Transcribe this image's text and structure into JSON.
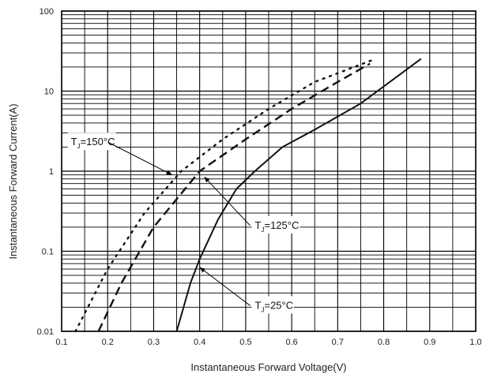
{
  "chart_data": {
    "type": "line",
    "xscale": "linear",
    "yscale": "log",
    "xlabel": "Instantaneous Forward Voltage(V)",
    "ylabel": "Instantaneous Forward Current(A)",
    "xlim": [
      0.1,
      1.0
    ],
    "ylim": [
      0.01,
      100
    ],
    "x_ticks": [
      "0.1",
      "0.2",
      "0.3",
      "0.4",
      "0.5",
      "0.6",
      "0.7",
      "0.8",
      "0.9",
      "1.0"
    ],
    "y_ticks": [
      "0.01",
      "0.1",
      "1",
      "10",
      "100"
    ],
    "grid": true,
    "series": [
      {
        "name": "TJ=150°C",
        "style": "dotted",
        "points": [
          [
            0.13,
            0.01
          ],
          [
            0.2,
            0.06
          ],
          [
            0.28,
            0.3
          ],
          [
            0.36,
            1.0
          ],
          [
            0.45,
            2.5
          ],
          [
            0.55,
            6.0
          ],
          [
            0.65,
            13.0
          ],
          [
            0.78,
            25.0
          ]
        ]
      },
      {
        "name": "TJ=125°C",
        "style": "dashed",
        "points": [
          [
            0.18,
            0.01
          ],
          [
            0.23,
            0.04
          ],
          [
            0.3,
            0.2
          ],
          [
            0.4,
            1.0
          ],
          [
            0.5,
            2.5
          ],
          [
            0.6,
            6.0
          ],
          [
            0.7,
            13.0
          ],
          [
            0.77,
            22.0
          ]
        ]
      },
      {
        "name": "TJ=25°C",
        "style": "solid",
        "points": [
          [
            0.35,
            0.01
          ],
          [
            0.38,
            0.04
          ],
          [
            0.4,
            0.08
          ],
          [
            0.44,
            0.25
          ],
          [
            0.48,
            0.6
          ],
          [
            0.52,
            1.0
          ],
          [
            0.58,
            2.0
          ],
          [
            0.65,
            3.3
          ],
          [
            0.75,
            7.0
          ],
          [
            0.88,
            25.0
          ]
        ]
      }
    ],
    "annotations": [
      {
        "label_main": "T",
        "label_sub": "J",
        "label_rest": "=150°C",
        "label_x": 0.12,
        "label_y": 2.2,
        "arrow_to": [
          0.34,
          0.9
        ]
      },
      {
        "label_main": "T",
        "label_sub": "J",
        "label_rest": "=125°C",
        "label_x": 0.52,
        "label_y": 0.2,
        "arrow_to": [
          0.41,
          0.85
        ]
      },
      {
        "label_main": "T",
        "label_sub": "J",
        "label_rest": "=25°C",
        "label_x": 0.52,
        "label_y": 0.02,
        "arrow_to": [
          0.4,
          0.063
        ]
      }
    ]
  }
}
